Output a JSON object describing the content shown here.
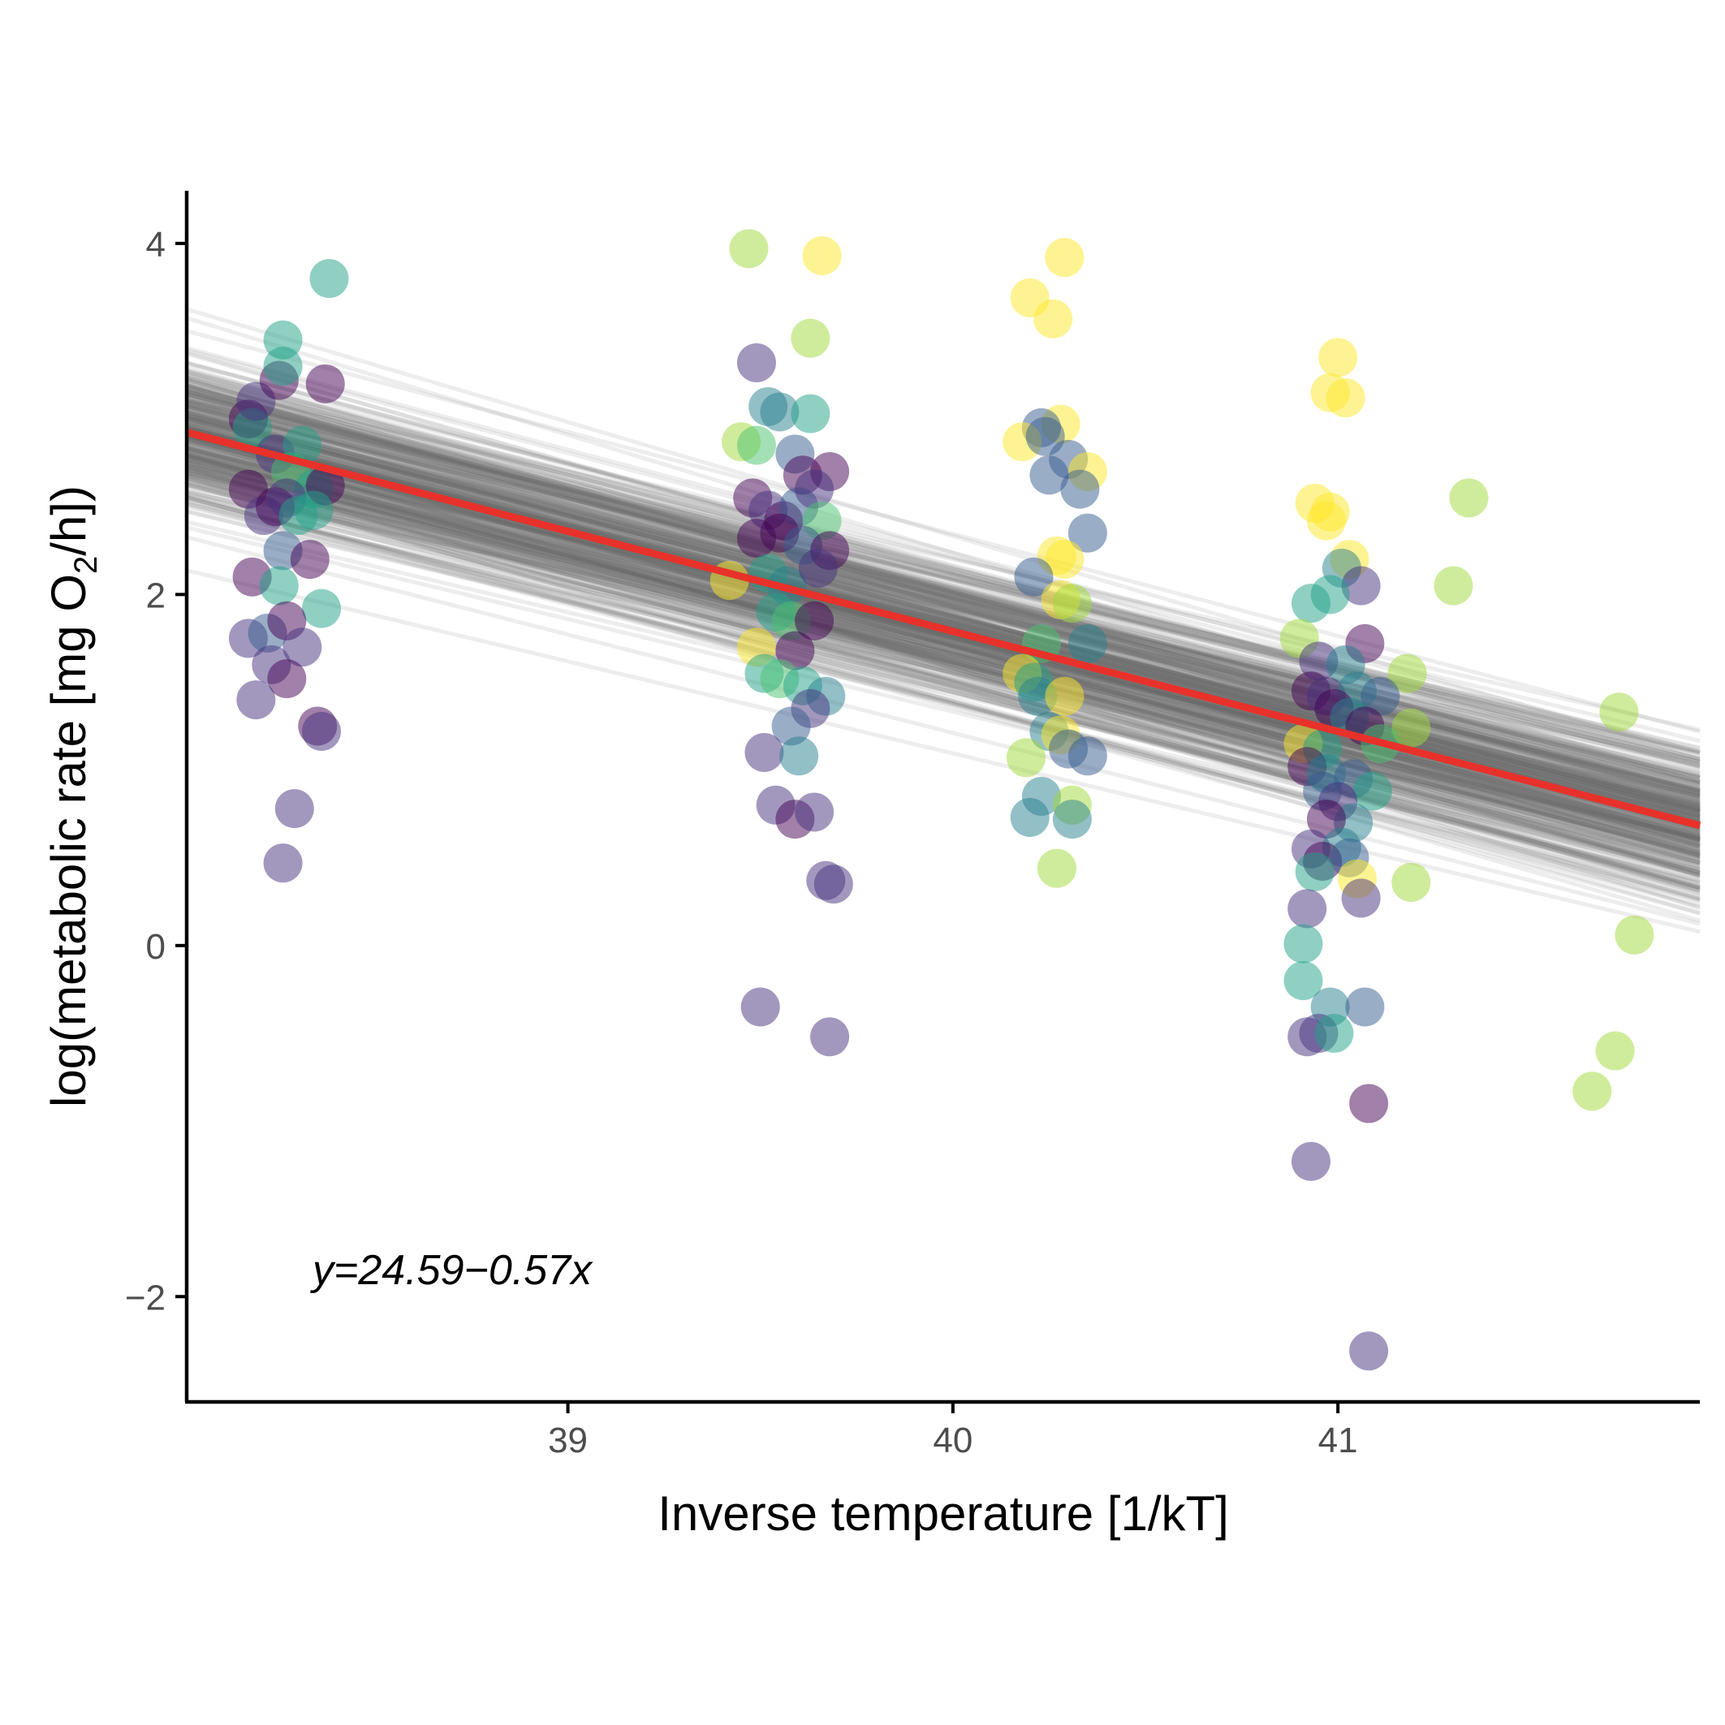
{
  "chart_data": {
    "type": "scatter",
    "title": "",
    "xlabel": "Inverse temperature [1/kT]",
    "ylabel": {
      "before": "log(metabolic rate [mg  O",
      "subscript": "2",
      "after": "/h])"
    },
    "xlim": [
      38.01,
      41.94
    ],
    "ylim": [
      -2.6,
      4.3
    ],
    "xticks": [
      {
        "value": 39,
        "label": "39"
      },
      {
        "value": 40,
        "label": "40"
      },
      {
        "value": 41,
        "label": "41"
      }
    ],
    "yticks": [
      {
        "value": -2,
        "label": "−2"
      },
      {
        "value": 0,
        "label": "0"
      },
      {
        "value": 2,
        "label": "2"
      },
      {
        "value": 4,
        "label": "4"
      }
    ],
    "grid": false,
    "legend": "none",
    "annotation": "y=24.59−0.57x",
    "fit_line": {
      "intercept": 24.59,
      "slope": -0.57,
      "color": "#e8312a"
    },
    "posterior_lines": {
      "count": 400,
      "color": "#6e6e6e",
      "intercept_center": 24.59,
      "slope_center": -0.57,
      "sd_offset": 0.2
    },
    "palette": [
      "#440154",
      "#46327e",
      "#365c8d",
      "#277f8e",
      "#1fa187",
      "#4ac16d",
      "#a0da39",
      "#fde725"
    ],
    "point_alpha": 0.5,
    "points": [
      {
        "x": 38.17,
        "y": 3.0,
        "g": 0
      },
      {
        "x": 38.18,
        "y": 2.95,
        "g": 4
      },
      {
        "x": 38.19,
        "y": 3.1,
        "g": 1
      },
      {
        "x": 38.25,
        "y": 3.22,
        "g": 0
      },
      {
        "x": 38.26,
        "y": 3.3,
        "g": 4
      },
      {
        "x": 38.26,
        "y": 3.45,
        "g": 4
      },
      {
        "x": 38.38,
        "y": 3.8,
        "g": 4
      },
      {
        "x": 38.37,
        "y": 3.2,
        "g": 0
      },
      {
        "x": 38.24,
        "y": 2.8,
        "g": 1
      },
      {
        "x": 38.28,
        "y": 2.7,
        "g": 5
      },
      {
        "x": 38.31,
        "y": 2.85,
        "g": 4
      },
      {
        "x": 38.34,
        "y": 2.6,
        "g": 4
      },
      {
        "x": 38.37,
        "y": 2.62,
        "g": 0
      },
      {
        "x": 38.17,
        "y": 2.6,
        "g": 0
      },
      {
        "x": 38.21,
        "y": 2.45,
        "g": 1
      },
      {
        "x": 38.24,
        "y": 2.5,
        "g": 0
      },
      {
        "x": 38.27,
        "y": 2.55,
        "g": 1
      },
      {
        "x": 38.3,
        "y": 2.45,
        "g": 4
      },
      {
        "x": 38.34,
        "y": 2.48,
        "g": 4
      },
      {
        "x": 38.26,
        "y": 2.25,
        "g": 2
      },
      {
        "x": 38.33,
        "y": 2.2,
        "g": 0
      },
      {
        "x": 38.18,
        "y": 2.1,
        "g": 0
      },
      {
        "x": 38.25,
        "y": 2.05,
        "g": 4
      },
      {
        "x": 38.36,
        "y": 1.92,
        "g": 4
      },
      {
        "x": 38.17,
        "y": 1.75,
        "g": 1
      },
      {
        "x": 38.22,
        "y": 1.78,
        "g": 2
      },
      {
        "x": 38.27,
        "y": 1.85,
        "g": 0
      },
      {
        "x": 38.31,
        "y": 1.7,
        "g": 1
      },
      {
        "x": 38.23,
        "y": 1.6,
        "g": 1
      },
      {
        "x": 38.27,
        "y": 1.52,
        "g": 0
      },
      {
        "x": 38.19,
        "y": 1.4,
        "g": 1
      },
      {
        "x": 38.35,
        "y": 1.25,
        "g": 0
      },
      {
        "x": 38.36,
        "y": 1.22,
        "g": 1
      },
      {
        "x": 38.29,
        "y": 0.78,
        "g": 1
      },
      {
        "x": 38.26,
        "y": 0.47,
        "g": 1
      },
      {
        "x": 39.47,
        "y": 3.97,
        "g": 6
      },
      {
        "x": 39.66,
        "y": 3.93,
        "g": 7
      },
      {
        "x": 39.63,
        "y": 3.46,
        "g": 6
      },
      {
        "x": 39.49,
        "y": 3.32,
        "g": 1
      },
      {
        "x": 39.52,
        "y": 3.07,
        "g": 3
      },
      {
        "x": 39.55,
        "y": 3.04,
        "g": 3
      },
      {
        "x": 39.63,
        "y": 3.03,
        "g": 4
      },
      {
        "x": 39.45,
        "y": 2.87,
        "g": 6
      },
      {
        "x": 39.49,
        "y": 2.85,
        "g": 5
      },
      {
        "x": 39.59,
        "y": 2.8,
        "g": 2
      },
      {
        "x": 39.61,
        "y": 2.68,
        "g": 0
      },
      {
        "x": 39.68,
        "y": 2.7,
        "g": 0
      },
      {
        "x": 39.48,
        "y": 2.55,
        "g": 0
      },
      {
        "x": 39.52,
        "y": 2.48,
        "g": 1
      },
      {
        "x": 39.56,
        "y": 2.42,
        "g": 0
      },
      {
        "x": 39.6,
        "y": 2.5,
        "g": 2
      },
      {
        "x": 39.64,
        "y": 2.6,
        "g": 1
      },
      {
        "x": 39.66,
        "y": 2.42,
        "g": 5
      },
      {
        "x": 39.49,
        "y": 2.32,
        "g": 0
      },
      {
        "x": 39.55,
        "y": 2.35,
        "g": 0
      },
      {
        "x": 39.61,
        "y": 2.28,
        "g": 2
      },
      {
        "x": 39.68,
        "y": 2.25,
        "g": 0
      },
      {
        "x": 39.42,
        "y": 2.08,
        "g": 7
      },
      {
        "x": 39.52,
        "y": 2.12,
        "g": 4
      },
      {
        "x": 39.57,
        "y": 2.05,
        "g": 3
      },
      {
        "x": 39.65,
        "y": 2.15,
        "g": 1
      },
      {
        "x": 39.54,
        "y": 1.9,
        "g": 4
      },
      {
        "x": 39.58,
        "y": 1.85,
        "g": 5
      },
      {
        "x": 39.64,
        "y": 1.85,
        "g": 0
      },
      {
        "x": 39.49,
        "y": 1.7,
        "g": 7
      },
      {
        "x": 39.59,
        "y": 1.68,
        "g": 0
      },
      {
        "x": 39.51,
        "y": 1.55,
        "g": 4
      },
      {
        "x": 39.55,
        "y": 1.52,
        "g": 5
      },
      {
        "x": 39.61,
        "y": 1.48,
        "g": 4
      },
      {
        "x": 39.67,
        "y": 1.42,
        "g": 3
      },
      {
        "x": 39.63,
        "y": 1.35,
        "g": 1
      },
      {
        "x": 39.58,
        "y": 1.25,
        "g": 2
      },
      {
        "x": 39.51,
        "y": 1.1,
        "g": 1
      },
      {
        "x": 39.6,
        "y": 1.08,
        "g": 3
      },
      {
        "x": 39.54,
        "y": 0.8,
        "g": 1
      },
      {
        "x": 39.59,
        "y": 0.72,
        "g": 0
      },
      {
        "x": 39.64,
        "y": 0.76,
        "g": 1
      },
      {
        "x": 39.67,
        "y": 0.37,
        "g": 1
      },
      {
        "x": 39.69,
        "y": 0.35,
        "g": 1
      },
      {
        "x": 39.5,
        "y": -0.35,
        "g": 1
      },
      {
        "x": 39.68,
        "y": -0.52,
        "g": 1
      },
      {
        "x": 40.29,
        "y": 3.92,
        "g": 7
      },
      {
        "x": 40.2,
        "y": 3.69,
        "g": 7
      },
      {
        "x": 40.26,
        "y": 3.57,
        "g": 7
      },
      {
        "x": 40.28,
        "y": 2.97,
        "g": 7
      },
      {
        "x": 40.23,
        "y": 2.95,
        "g": 2
      },
      {
        "x": 40.18,
        "y": 2.87,
        "g": 7
      },
      {
        "x": 40.24,
        "y": 2.9,
        "g": 2
      },
      {
        "x": 40.3,
        "y": 2.77,
        "g": 2
      },
      {
        "x": 40.35,
        "y": 2.7,
        "g": 7
      },
      {
        "x": 40.25,
        "y": 2.68,
        "g": 2
      },
      {
        "x": 40.33,
        "y": 2.6,
        "g": 2
      },
      {
        "x": 40.35,
        "y": 2.35,
        "g": 2
      },
      {
        "x": 40.27,
        "y": 2.22,
        "g": 7
      },
      {
        "x": 40.29,
        "y": 2.2,
        "g": 7
      },
      {
        "x": 40.21,
        "y": 2.1,
        "g": 2
      },
      {
        "x": 40.28,
        "y": 1.97,
        "g": 7
      },
      {
        "x": 40.31,
        "y": 1.95,
        "g": 6
      },
      {
        "x": 40.23,
        "y": 1.72,
        "g": 5
      },
      {
        "x": 40.35,
        "y": 1.72,
        "g": 3
      },
      {
        "x": 40.18,
        "y": 1.55,
        "g": 7
      },
      {
        "x": 40.21,
        "y": 1.5,
        "g": 4
      },
      {
        "x": 40.22,
        "y": 1.42,
        "g": 3
      },
      {
        "x": 40.29,
        "y": 1.42,
        "g": 7
      },
      {
        "x": 40.25,
        "y": 1.22,
        "g": 3
      },
      {
        "x": 40.28,
        "y": 1.2,
        "g": 7
      },
      {
        "x": 40.3,
        "y": 1.12,
        "g": 2
      },
      {
        "x": 40.19,
        "y": 1.07,
        "g": 6
      },
      {
        "x": 40.35,
        "y": 1.08,
        "g": 2
      },
      {
        "x": 40.23,
        "y": 0.85,
        "g": 3
      },
      {
        "x": 40.31,
        "y": 0.8,
        "g": 6
      },
      {
        "x": 40.2,
        "y": 0.73,
        "g": 3
      },
      {
        "x": 40.31,
        "y": 0.72,
        "g": 3
      },
      {
        "x": 40.27,
        "y": 0.44,
        "g": 6
      },
      {
        "x": 41.0,
        "y": 3.35,
        "g": 7
      },
      {
        "x": 40.98,
        "y": 3.15,
        "g": 7
      },
      {
        "x": 41.02,
        "y": 3.12,
        "g": 7
      },
      {
        "x": 40.94,
        "y": 2.52,
        "g": 7
      },
      {
        "x": 40.98,
        "y": 2.47,
        "g": 7
      },
      {
        "x": 40.97,
        "y": 2.42,
        "g": 7
      },
      {
        "x": 41.34,
        "y": 2.55,
        "g": 6
      },
      {
        "x": 41.03,
        "y": 2.2,
        "g": 7
      },
      {
        "x": 41.01,
        "y": 2.15,
        "g": 3
      },
      {
        "x": 41.06,
        "y": 2.05,
        "g": 1
      },
      {
        "x": 41.3,
        "y": 2.05,
        "g": 6
      },
      {
        "x": 40.98,
        "y": 2.0,
        "g": 4
      },
      {
        "x": 40.93,
        "y": 1.95,
        "g": 4
      },
      {
        "x": 40.9,
        "y": 1.75,
        "g": 6
      },
      {
        "x": 41.07,
        "y": 1.72,
        "g": 0
      },
      {
        "x": 40.95,
        "y": 1.62,
        "g": 1
      },
      {
        "x": 41.02,
        "y": 1.6,
        "g": 3
      },
      {
        "x": 41.18,
        "y": 1.55,
        "g": 6
      },
      {
        "x": 40.93,
        "y": 1.45,
        "g": 0
      },
      {
        "x": 40.97,
        "y": 1.42,
        "g": 1
      },
      {
        "x": 41.05,
        "y": 1.45,
        "g": 3
      },
      {
        "x": 41.11,
        "y": 1.42,
        "g": 2
      },
      {
        "x": 40.99,
        "y": 1.35,
        "g": 0
      },
      {
        "x": 41.03,
        "y": 1.3,
        "g": 3
      },
      {
        "x": 41.07,
        "y": 1.25,
        "g": 0
      },
      {
        "x": 41.19,
        "y": 1.24,
        "g": 6
      },
      {
        "x": 41.73,
        "y": 1.33,
        "g": 6
      },
      {
        "x": 40.91,
        "y": 1.15,
        "g": 7
      },
      {
        "x": 40.96,
        "y": 1.12,
        "g": 4
      },
      {
        "x": 41.11,
        "y": 1.15,
        "g": 5
      },
      {
        "x": 40.92,
        "y": 1.02,
        "g": 0
      },
      {
        "x": 40.97,
        "y": 0.98,
        "g": 3
      },
      {
        "x": 41.04,
        "y": 0.95,
        "g": 2
      },
      {
        "x": 41.09,
        "y": 0.88,
        "g": 4
      },
      {
        "x": 40.96,
        "y": 0.88,
        "g": 2
      },
      {
        "x": 41.0,
        "y": 0.82,
        "g": 1
      },
      {
        "x": 41.04,
        "y": 0.7,
        "g": 3
      },
      {
        "x": 40.97,
        "y": 0.72,
        "g": 0
      },
      {
        "x": 40.93,
        "y": 0.55,
        "g": 1
      },
      {
        "x": 41.01,
        "y": 0.56,
        "g": 3
      },
      {
        "x": 40.96,
        "y": 0.48,
        "g": 0
      },
      {
        "x": 41.03,
        "y": 0.5,
        "g": 2
      },
      {
        "x": 40.94,
        "y": 0.42,
        "g": 4
      },
      {
        "x": 41.05,
        "y": 0.38,
        "g": 7
      },
      {
        "x": 41.19,
        "y": 0.36,
        "g": 6
      },
      {
        "x": 41.06,
        "y": 0.27,
        "g": 1
      },
      {
        "x": 40.92,
        "y": 0.21,
        "g": 1
      },
      {
        "x": 40.91,
        "y": 0.01,
        "g": 4
      },
      {
        "x": 41.77,
        "y": 0.06,
        "g": 6
      },
      {
        "x": 40.91,
        "y": -0.2,
        "g": 4
      },
      {
        "x": 40.98,
        "y": -0.35,
        "g": 3
      },
      {
        "x": 41.07,
        "y": -0.35,
        "g": 2
      },
      {
        "x": 40.92,
        "y": -0.52,
        "g": 1
      },
      {
        "x": 40.95,
        "y": -0.5,
        "g": 1
      },
      {
        "x": 40.99,
        "y": -0.5,
        "g": 4
      },
      {
        "x": 41.72,
        "y": -0.6,
        "g": 6
      },
      {
        "x": 41.66,
        "y": -0.83,
        "g": 6
      },
      {
        "x": 41.08,
        "y": -0.9,
        "g": 0
      },
      {
        "x": 40.93,
        "y": -1.23,
        "g": 1
      },
      {
        "x": 41.08,
        "y": -2.31,
        "g": 1
      }
    ]
  }
}
